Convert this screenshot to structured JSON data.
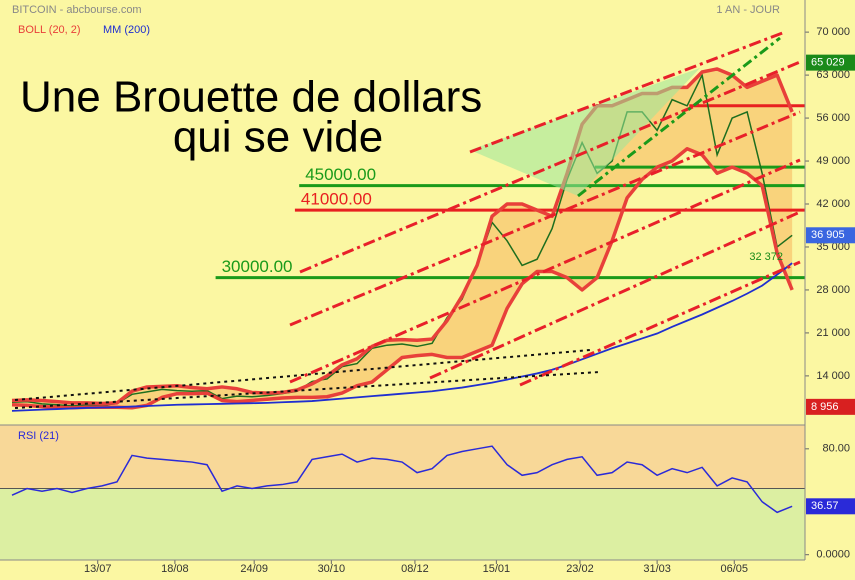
{
  "header": {
    "source": "BITCOIN - abcbourse.com",
    "period": "1 AN - JOUR"
  },
  "chart_data": [
    {
      "type": "line",
      "title_lines": [
        "Une Brouette de dollars",
        "qui se vide"
      ],
      "x": [
        0,
        7,
        14,
        21,
        28,
        35,
        42,
        49,
        56,
        63,
        70,
        77,
        84,
        91,
        98,
        105,
        112,
        119,
        126,
        133,
        140,
        147,
        154,
        161,
        168,
        175,
        182,
        189,
        196,
        203,
        210,
        217,
        224,
        231,
        238,
        245,
        252,
        259,
        266,
        273,
        280,
        287,
        294,
        301,
        308,
        315,
        322,
        329,
        336,
        343,
        350,
        357,
        364
      ],
      "xlim": [
        0,
        370
      ],
      "xticks": [
        {
          "value": 40,
          "label": "13/07"
        },
        {
          "value": 76,
          "label": "18/08"
        },
        {
          "value": 113,
          "label": "24/09"
        },
        {
          "value": 149,
          "label": "30/10"
        },
        {
          "value": 188,
          "label": "08/12"
        },
        {
          "value": 226,
          "label": "15/01"
        },
        {
          "value": 265,
          "label": "23/02"
        },
        {
          "value": 301,
          "label": "31/03"
        },
        {
          "value": 337,
          "label": "06/05"
        }
      ],
      "ylim": [
        6000,
        72300
      ],
      "yticks": [
        {
          "value": 14000,
          "label": "14 000"
        },
        {
          "value": 21000,
          "label": "21 000"
        },
        {
          "value": 28000,
          "label": "28 000"
        },
        {
          "value": 35000,
          "label": "35 000"
        },
        {
          "value": 42000,
          "label": "42 000"
        },
        {
          "value": 49000,
          "label": "49 000"
        },
        {
          "value": 56000,
          "label": "56 000"
        },
        {
          "value": 63000,
          "label": "63 000"
        },
        {
          "value": 70000,
          "label": "70 000"
        }
      ],
      "color": "#1e6e1e",
      "values": [
        9700,
        9800,
        9450,
        9300,
        9100,
        9250,
        9200,
        9500,
        11000,
        11400,
        11800,
        11600,
        11500,
        11600,
        10300,
        10700,
        10600,
        10800,
        11100,
        11500,
        13100,
        13500,
        15500,
        16000,
        18500,
        19000,
        19200,
        18800,
        19300,
        23500,
        26500,
        32000,
        39000,
        36000,
        32000,
        33000,
        38000,
        46000,
        52000,
        47000,
        49000,
        57000,
        57000,
        54000,
        59000,
        58000,
        63000,
        50000,
        56000,
        57000,
        47000,
        35000,
        36905
      ],
      "series": [
        {
          "name": "BOLL (20, 2)",
          "color": "#e8403a",
          "upper": [
            10000,
            10100,
            10000,
            9800,
            9600,
            9600,
            9500,
            9600,
            11500,
            12200,
            12300,
            12400,
            12100,
            11900,
            12200,
            11900,
            11300,
            11200,
            11300,
            11700,
            12700,
            14000,
            15800,
            16800,
            18800,
            19800,
            19900,
            19800,
            20000,
            23000,
            27000,
            32000,
            40000,
            42000,
            42000,
            41000,
            40000,
            47000,
            55000,
            58000,
            58000,
            59000,
            60000,
            60000,
            61000,
            61000,
            63500,
            64000,
            63000,
            61000,
            62000,
            63000,
            57000
          ],
          "lower": [
            9300,
            9200,
            9000,
            8900,
            8800,
            8900,
            8900,
            8900,
            8800,
            9200,
            10500,
            11100,
            11100,
            11200,
            10000,
            9800,
            10000,
            10200,
            10400,
            10500,
            10500,
            10600,
            11200,
            12400,
            13000,
            15000,
            17000,
            17300,
            17500,
            17000,
            17000,
            18000,
            19000,
            25000,
            29000,
            31000,
            31000,
            30000,
            28000,
            30000,
            36000,
            43000,
            46000,
            48000,
            49000,
            51000,
            50000,
            47000,
            48000,
            47000,
            45000,
            34000,
            28000
          ]
        },
        {
          "name": "MM (200)",
          "color": "#1f2fd0",
          "values": [
            8300,
            8400,
            8500,
            8600,
            8700,
            8800,
            8850,
            8900,
            9000,
            9100,
            9200,
            9300,
            9350,
            9400,
            9450,
            9500,
            9550,
            9600,
            9700,
            9800,
            9900,
            10100,
            10300,
            10500,
            10700,
            10900,
            11100,
            11300,
            11500,
            11800,
            12100,
            12500,
            12900,
            13400,
            13900,
            14400,
            15000,
            15800,
            16700,
            17600,
            18500,
            19300,
            20100,
            20900,
            22000,
            23000,
            24000,
            25100,
            26200,
            27400,
            28700,
            30500,
            32372
          ]
        }
      ],
      "levels": [
        {
          "value": 58000,
          "color": "#e82020",
          "from": 316
        },
        {
          "value": 48000,
          "color": "#1a9a1a",
          "from": 272
        },
        {
          "value": 45000,
          "label": "45000.00",
          "color": "#1a9a1a",
          "from": 134
        },
        {
          "value": 41000,
          "label": "41000.00",
          "color": "#e82020",
          "from": 132
        },
        {
          "value": 30000,
          "label": "30000.00",
          "color": "#1a9a1a",
          "from": 95
        }
      ],
      "markers": [
        {
          "value": 65029,
          "label": "65 029",
          "color": "#1a8a1a"
        },
        {
          "value": 36905,
          "label": "36 905",
          "color": "#3a66e0"
        },
        {
          "value": 8956,
          "label": "8 956",
          "color": "#d82020"
        }
      ],
      "ma_label": {
        "value": 32372,
        "label": "32 372"
      }
    },
    {
      "type": "line",
      "title": "RSI (21)",
      "color": "#2a2ad8",
      "values": [
        45,
        50,
        48,
        50,
        47,
        50,
        52,
        55,
        75,
        73,
        72,
        71,
        70,
        68,
        48,
        52,
        50,
        52,
        53,
        55,
        72,
        74,
        76,
        70,
        73,
        72,
        70,
        62,
        65,
        75,
        78,
        80,
        82,
        68,
        60,
        62,
        68,
        72,
        74,
        60,
        62,
        70,
        68,
        60,
        65,
        62,
        66,
        52,
        58,
        55,
        40,
        32,
        36.57
      ],
      "ylim": [
        -4,
        98
      ],
      "yticks": [
        {
          "value": 0,
          "label": "0.0000"
        },
        {
          "value": 80,
          "label": "80.00"
        }
      ],
      "threshold": 50,
      "markers": [
        {
          "value": 36.57,
          "label": "36.57",
          "color": "#2a2ad8"
        }
      ]
    }
  ]
}
